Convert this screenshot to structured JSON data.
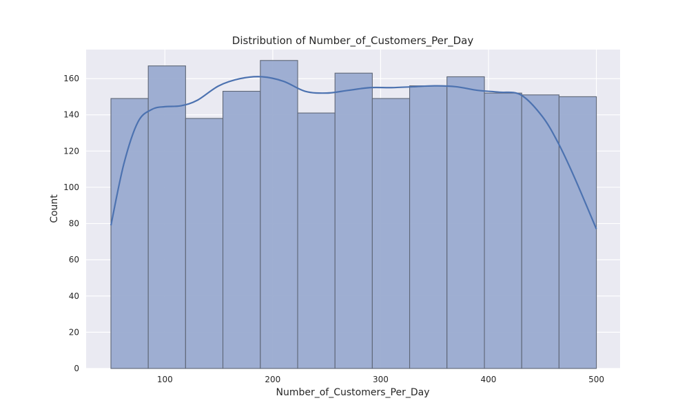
{
  "chart_data": {
    "type": "histogram",
    "title": "Distribution of Number_of_Customers_Per_Day",
    "xlabel": "Number_of_Customers_Per_Day",
    "ylabel": "Count",
    "xlim": [
      27,
      522
    ],
    "ylim": [
      0,
      176
    ],
    "xticks": [
      100,
      200,
      300,
      400,
      500
    ],
    "yticks": [
      0,
      20,
      40,
      60,
      80,
      100,
      120,
      140,
      160
    ],
    "bins": [
      {
        "x0": 50.0,
        "x1": 84.6,
        "count": 149
      },
      {
        "x0": 84.6,
        "x1": 119.2,
        "count": 167
      },
      {
        "x0": 119.2,
        "x1": 153.8,
        "count": 138
      },
      {
        "x0": 153.8,
        "x1": 188.5,
        "count": 153
      },
      {
        "x0": 188.5,
        "x1": 223.1,
        "count": 170
      },
      {
        "x0": 223.1,
        "x1": 257.7,
        "count": 141
      },
      {
        "x0": 257.7,
        "x1": 292.3,
        "count": 163
      },
      {
        "x0": 292.3,
        "x1": 326.9,
        "count": 149
      },
      {
        "x0": 326.9,
        "x1": 361.5,
        "count": 156
      },
      {
        "x0": 361.5,
        "x1": 396.2,
        "count": 161
      },
      {
        "x0": 396.2,
        "x1": 430.8,
        "count": 152
      },
      {
        "x0": 430.8,
        "x1": 465.4,
        "count": 151
      },
      {
        "x0": 465.4,
        "x1": 500.0,
        "count": 150
      }
    ],
    "kde": {
      "x": [
        50,
        62,
        75,
        88,
        100,
        115,
        130,
        150,
        170,
        190,
        210,
        230,
        250,
        270,
        290,
        310,
        330,
        350,
        370,
        390,
        410,
        430,
        450,
        465,
        480,
        500
      ],
      "y": [
        79,
        113,
        136,
        143,
        144.5,
        145,
        148,
        156,
        160,
        161,
        158.5,
        153,
        152,
        153.5,
        155,
        155,
        155.5,
        156,
        155.5,
        153.5,
        152.5,
        151,
        139,
        124,
        105,
        77
      ]
    },
    "grid": true,
    "colors": {
      "background": "#eaeaf2",
      "grid": "#ffffff",
      "bar_fill": "#9aabd0",
      "bar_edge": "#5d6575",
      "kde_line": "#4c72b0"
    }
  }
}
